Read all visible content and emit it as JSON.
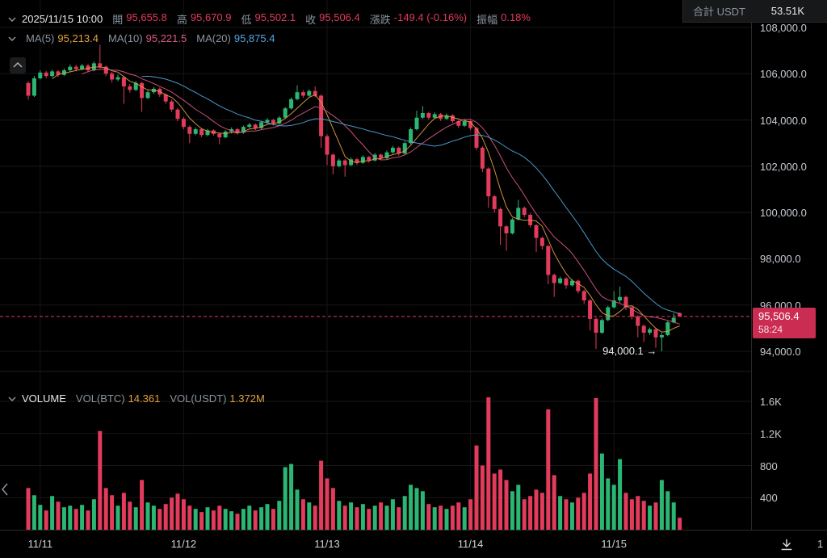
{
  "colors": {
    "background": "#000000",
    "up": "#2bb673",
    "down": "#e23b5c",
    "badge_bg": "#cb2c52",
    "ma5": "#e3a13e",
    "ma10": "#db5a8a",
    "ma20": "#53a7e0",
    "text": "#e8eaed",
    "label_gray": "#8b939e",
    "axis_text": "#c7ccd3",
    "grid": "#191919",
    "separator": "#2a2a2a"
  },
  "ohlc_row": {
    "timestamp": "2025/11/15 10:00",
    "items": [
      {
        "label": "開",
        "value": "95,655.8"
      },
      {
        "label": "高",
        "value": "95,670.9"
      },
      {
        "label": "低",
        "value": "95,502.1"
      },
      {
        "label": "收",
        "value": "95,506.4"
      },
      {
        "label": "漲跌",
        "value": "-149.4 (-0.16%)"
      },
      {
        "label": "振幅",
        "value": "0.18%"
      }
    ]
  },
  "ma_row": {
    "items": [
      {
        "label": "MA(5)",
        "value": "95,213.4"
      },
      {
        "label": "MA(10)",
        "value": "95,221.5"
      },
      {
        "label": "MA(20)",
        "value": "95,875.4"
      }
    ]
  },
  "volume_row": {
    "title": "VOLUME",
    "items": [
      {
        "label": "VOL(BTC)",
        "value": "14.361"
      },
      {
        "label": "VOL(USDT)",
        "value": "1.372M"
      }
    ]
  },
  "top_right": {
    "label": "合計 USDT",
    "value": "53.51K"
  },
  "chart_data": {
    "type": "candlestick",
    "x_axis": {
      "labels": [
        "11/11",
        "11/12",
        "11/13",
        "11/14",
        "11/15"
      ],
      "slots": [
        2,
        26,
        50,
        74,
        98
      ],
      "partial_right_label": "1"
    },
    "price_axis": {
      "labels": [
        "108,000.0",
        "106,000.0",
        "104,000.0",
        "102,000.0",
        "100,000.0",
        "98,000.0",
        "96,000.0",
        "94,000.0"
      ],
      "values": [
        108000,
        106000,
        104000,
        102000,
        100000,
        98000,
        96000,
        94000
      ]
    },
    "volume_axis": {
      "labels": [
        "1.6K",
        "1.2K",
        "800",
        "400"
      ],
      "values": [
        1600,
        1200,
        800,
        400
      ]
    },
    "last_price": {
      "value": 95506.4,
      "label": "95,506.4",
      "countdown": "58:24"
    },
    "low_annotation": {
      "label": "94,000.1",
      "arrow": "→",
      "slot": 106,
      "price": 94000.1
    },
    "ma_windows": [
      5,
      10,
      20
    ],
    "candles": [
      [
        105600,
        105680,
        104880,
        105050
      ],
      [
        105050,
        105900,
        105000,
        105800
      ],
      [
        105800,
        106150,
        105750,
        106050
      ],
      [
        106050,
        106120,
        105800,
        105900
      ],
      [
        105900,
        106180,
        105850,
        106100
      ],
      [
        106100,
        106160,
        105860,
        105950
      ],
      [
        105950,
        106230,
        105900,
        106150
      ],
      [
        106150,
        106400,
        106080,
        106300
      ],
      [
        106300,
        106380,
        106100,
        106200
      ],
      [
        106200,
        106430,
        106150,
        106350
      ],
      [
        106350,
        106420,
        106060,
        106150
      ],
      [
        106150,
        106530,
        106100,
        106450
      ],
      [
        106450,
        107250,
        106220,
        106300
      ],
      [
        106300,
        106360,
        105900,
        106000
      ],
      [
        106000,
        106080,
        105620,
        105750
      ],
      [
        105750,
        105960,
        105680,
        105850
      ],
      [
        105850,
        105900,
        104700,
        105450
      ],
      [
        105450,
        105560,
        105180,
        105300
      ],
      [
        105300,
        105680,
        105250,
        105600
      ],
      [
        105600,
        105650,
        104350,
        104950
      ],
      [
        104950,
        105280,
        104900,
        105200
      ],
      [
        105200,
        105430,
        105120,
        105350
      ],
      [
        105350,
        105400,
        105000,
        105100
      ],
      [
        105100,
        105160,
        104700,
        104800
      ],
      [
        104800,
        104880,
        104350,
        104450
      ],
      [
        104450,
        104520,
        103950,
        104050
      ],
      [
        104050,
        104120,
        103600,
        103700
      ],
      [
        103700,
        103760,
        103000,
        103400
      ],
      [
        103400,
        103680,
        103340,
        103600
      ],
      [
        103600,
        103650,
        103260,
        103350
      ],
      [
        103350,
        103620,
        103300,
        103550
      ],
      [
        103550,
        103600,
        103320,
        103400
      ],
      [
        103400,
        103460,
        102950,
        103250
      ],
      [
        103250,
        103560,
        103200,
        103500
      ],
      [
        103500,
        103680,
        103420,
        103600
      ],
      [
        103600,
        103660,
        103360,
        103450
      ],
      [
        103450,
        103760,
        103400,
        103700
      ],
      [
        103700,
        103880,
        103640,
        103800
      ],
      [
        103800,
        103850,
        103560,
        103650
      ],
      [
        103650,
        103960,
        103600,
        103900
      ],
      [
        103900,
        104080,
        103840,
        104000
      ],
      [
        104000,
        104060,
        103760,
        103850
      ],
      [
        103850,
        104170,
        103800,
        104100
      ],
      [
        104100,
        104560,
        104050,
        104500
      ],
      [
        104500,
        104980,
        104450,
        104900
      ],
      [
        104900,
        105500,
        104850,
        105200
      ],
      [
        105200,
        105280,
        104960,
        105050
      ],
      [
        105050,
        105330,
        105000,
        105250
      ],
      [
        105250,
        105450,
        104980,
        105050
      ],
      [
        105050,
        105110,
        102800,
        103300
      ],
      [
        103300,
        103380,
        102050,
        102500
      ],
      [
        102500,
        102560,
        101650,
        102000
      ],
      [
        102000,
        102330,
        101950,
        102250
      ],
      [
        102250,
        102300,
        101550,
        102050
      ],
      [
        102050,
        102380,
        102000,
        102300
      ],
      [
        102300,
        102360,
        102060,
        102150
      ],
      [
        102150,
        102470,
        102100,
        102400
      ],
      [
        102400,
        102450,
        102160,
        102250
      ],
      [
        102250,
        102570,
        102200,
        102500
      ],
      [
        102500,
        102550,
        102260,
        102350
      ],
      [
        102350,
        102680,
        102300,
        102600
      ],
      [
        102600,
        102880,
        102540,
        102800
      ],
      [
        102800,
        102850,
        102460,
        102550
      ],
      [
        102550,
        103080,
        102500,
        103000
      ],
      [
        103000,
        103680,
        102950,
        103600
      ],
      [
        103600,
        104400,
        103550,
        104100
      ],
      [
        104100,
        104600,
        104040,
        104300
      ],
      [
        104300,
        104360,
        104020,
        104100
      ],
      [
        104100,
        104330,
        104050,
        104250
      ],
      [
        104250,
        104300,
        103960,
        104050
      ],
      [
        104050,
        104280,
        104000,
        104200
      ],
      [
        104200,
        104250,
        103880,
        103950
      ],
      [
        103950,
        104000,
        103650,
        103750
      ],
      [
        103750,
        104030,
        103700,
        103950
      ],
      [
        103950,
        104000,
        103560,
        103650
      ],
      [
        103650,
        103700,
        102700,
        102800
      ],
      [
        102800,
        102860,
        101750,
        101900
      ],
      [
        101900,
        101950,
        100200,
        100700
      ],
      [
        100700,
        100760,
        100000,
        100150
      ],
      [
        100150,
        100220,
        98600,
        99400
      ],
      [
        99400,
        99460,
        98350,
        99100
      ],
      [
        99100,
        99760,
        99050,
        99700
      ],
      [
        99700,
        100550,
        99650,
        100200
      ],
      [
        100200,
        100260,
        99800,
        99900
      ],
      [
        99900,
        99960,
        99350,
        99450
      ],
      [
        99450,
        99500,
        98300,
        98900
      ],
      [
        98900,
        98960,
        98400,
        98550
      ],
      [
        98550,
        98600,
        96900,
        97300
      ],
      [
        97300,
        97360,
        96350,
        96950
      ],
      [
        96950,
        97230,
        96900,
        97150
      ],
      [
        97150,
        97200,
        96700,
        96850
      ],
      [
        96850,
        97130,
        96800,
        97050
      ],
      [
        97050,
        97100,
        96500,
        96600
      ],
      [
        96600,
        96660,
        96050,
        96200
      ],
      [
        96200,
        96260,
        94900,
        95400
      ],
      [
        95400,
        95460,
        94100,
        94800
      ],
      [
        94800,
        95420,
        94750,
        95350
      ],
      [
        95350,
        95970,
        95300,
        95900
      ],
      [
        95900,
        96600,
        95850,
        96200
      ],
      [
        96200,
        96800,
        96100,
        96350
      ],
      [
        96350,
        96400,
        95780,
        95900
      ],
      [
        95900,
        95960,
        95380,
        95500
      ],
      [
        95500,
        95560,
        94600,
        95100
      ],
      [
        95100,
        95160,
        94400,
        94800
      ],
      [
        94800,
        95020,
        94700,
        94950
      ],
      [
        94950,
        95000,
        94150,
        94600
      ],
      [
        94600,
        94780,
        94000.1,
        94700
      ],
      [
        94700,
        95320,
        94650,
        95250
      ],
      [
        95250,
        95650,
        95200,
        95450
      ],
      [
        95655.8,
        95670.9,
        95502.1,
        95506.4
      ]
    ],
    "volumes": [
      520,
      430,
      310,
      240,
      420,
      350,
      280,
      300,
      260,
      310,
      240,
      380,
      1230,
      520,
      430,
      300,
      460,
      350,
      280,
      620,
      340,
      300,
      260,
      320,
      400,
      450,
      380,
      300,
      260,
      220,
      280,
      240,
      300,
      260,
      230,
      200,
      260,
      300,
      240,
      280,
      320,
      260,
      360,
      780,
      820,
      500,
      380,
      340,
      300,
      860,
      640,
      520,
      360,
      300,
      340,
      280,
      320,
      260,
      300,
      340,
      300,
      380,
      280,
      420,
      560,
      520,
      480,
      320,
      280,
      300,
      260,
      300,
      340,
      280,
      380,
      1050,
      800,
      1650,
      700,
      750,
      620,
      480,
      560,
      380,
      420,
      500,
      460,
      1500,
      680,
      420,
      380,
      340,
      400,
      460,
      700,
      1640,
      950,
      640,
      560,
      880,
      460,
      380,
      420,
      360,
      300,
      340,
      620,
      480,
      340,
      150
    ]
  }
}
